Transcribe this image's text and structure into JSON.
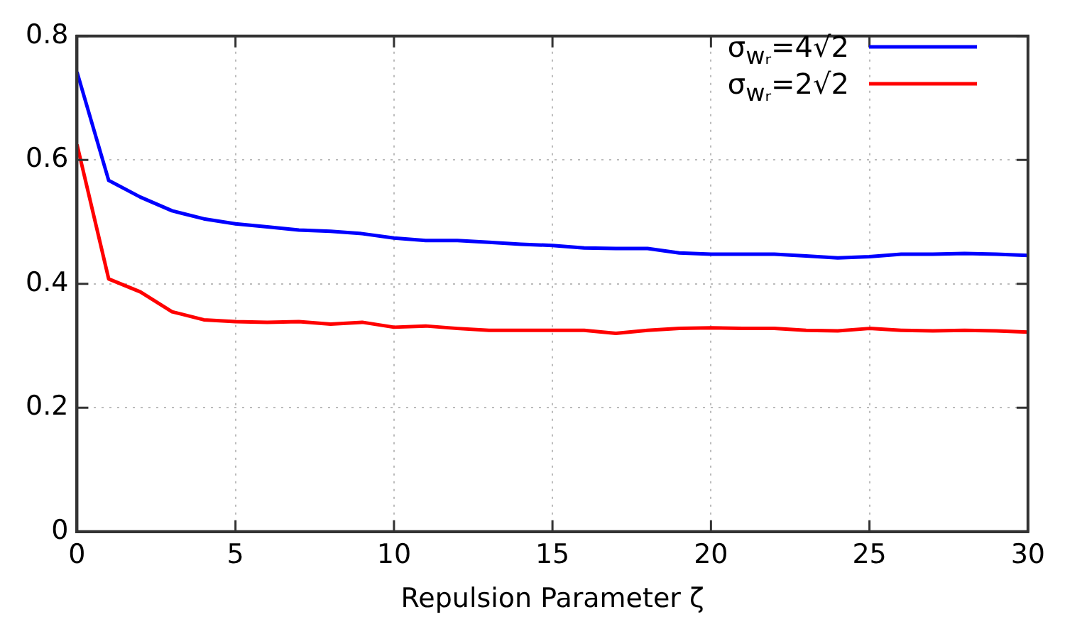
{
  "chart_data": {
    "type": "line",
    "xlabel": "Repulsion Parameter ζ",
    "x": [
      0,
      1,
      2,
      3,
      4,
      5,
      6,
      7,
      8,
      9,
      10,
      11,
      12,
      13,
      14,
      15,
      16,
      17,
      18,
      19,
      20,
      21,
      22,
      23,
      24,
      25,
      26,
      27,
      28,
      29,
      30
    ],
    "series": [
      {
        "name": "σ$_{wᵣ}$=4√2",
        "color": "#0000ff",
        "values": [
          0.742,
          0.567,
          0.54,
          0.518,
          0.505,
          0.497,
          0.492,
          0.487,
          0.485,
          0.481,
          0.474,
          0.47,
          0.47,
          0.467,
          0.464,
          0.462,
          0.458,
          0.457,
          0.457,
          0.45,
          0.448,
          0.448,
          0.448,
          0.445,
          0.442,
          0.444,
          0.448,
          0.448,
          0.449,
          0.448,
          0.446
        ]
      },
      {
        "name": "σ$_{wᵣ}$=2√2",
        "color": "#ff0000",
        "values": [
          0.625,
          0.408,
          0.387,
          0.355,
          0.342,
          0.339,
          0.338,
          0.339,
          0.335,
          0.338,
          0.33,
          0.332,
          0.328,
          0.325,
          0.325,
          0.325,
          0.325,
          0.32,
          0.325,
          0.328,
          0.329,
          0.328,
          0.328,
          0.325,
          0.324,
          0.328,
          0.325,
          0.324,
          0.325,
          0.324,
          0.322
        ]
      }
    ],
    "xlim": [
      0,
      30
    ],
    "xticks": [
      0,
      5,
      10,
      15,
      20,
      25,
      30
    ],
    "ylim": [
      0,
      0.8
    ],
    "yticks": [
      0,
      0.2,
      0.4,
      0.6,
      0.8
    ],
    "grid": true,
    "legend": "top right",
    "marker": "none",
    "line_style": "solid"
  }
}
